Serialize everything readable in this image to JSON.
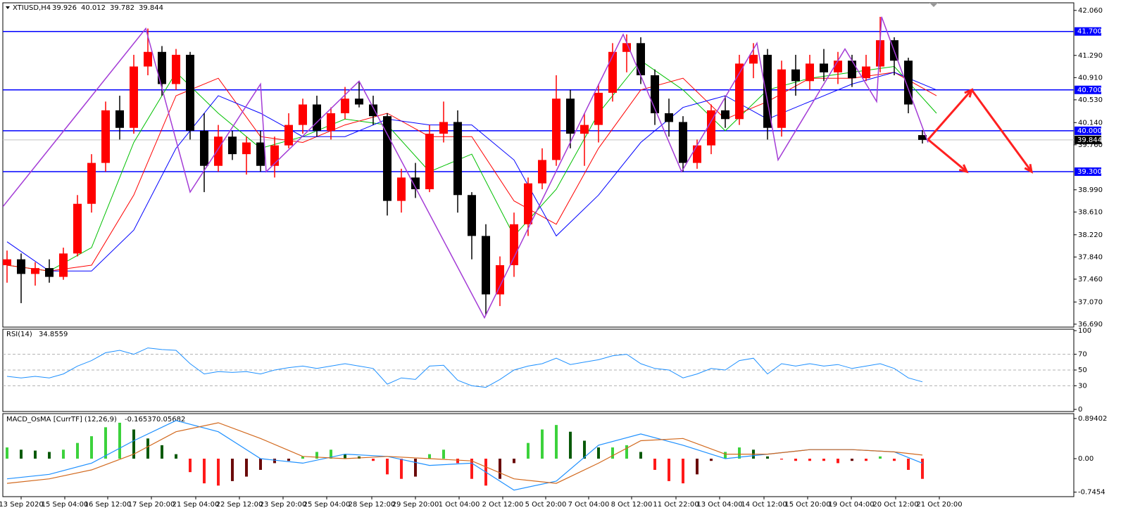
{
  "chart_data": [
    {
      "type": "candlestick",
      "title": "XTIUSD,H4",
      "xlim": [
        -0.3,
        75.75
      ],
      "ylim": [
        36.64,
        42.19
      ],
      "xticks": [
        {
          "value": 1,
          "label": "13 Sep 2020"
        },
        {
          "value": 4.1,
          "label": "15 Sep 04:00"
        },
        {
          "value": 7.15,
          "label": "16 Sep 12:00"
        },
        {
          "value": 10.25,
          "label": "17 Sep 20:00"
        },
        {
          "value": 13.4,
          "label": "21 Sep 04:00"
        },
        {
          "value": 16.5,
          "label": "22 Sep 12:00"
        },
        {
          "value": 19.6,
          "label": "23 Sep 20:00"
        },
        {
          "value": 22.7,
          "label": "25 Sep 04:00"
        },
        {
          "value": 25.9,
          "label": "28 Sep 12:00"
        },
        {
          "value": 29,
          "label": "29 Sep 20:00"
        },
        {
          "value": 32.1,
          "label": "1 Oct 04:00"
        },
        {
          "value": 35.2,
          "label": "2 Oct 12:00"
        },
        {
          "value": 38.25,
          "label": "5 Oct 20:00"
        },
        {
          "value": 41.3,
          "label": "7 Oct 04:00"
        },
        {
          "value": 44.35,
          "label": "8 Oct 12:00"
        },
        {
          "value": 47.5,
          "label": "11 Oct 22:00"
        },
        {
          "value": 50.6,
          "label": "13 Oct 04:00"
        },
        {
          "value": 53.75,
          "label": "14 Oct 12:00"
        },
        {
          "value": 56.85,
          "label": "15 Oct 20:00"
        },
        {
          "value": 59.95,
          "label": "19 Oct 04:00"
        },
        {
          "value": 63.1,
          "label": "20 Oct 12:00"
        },
        {
          "value": 66.2,
          "label": "21 Oct 20:00"
        }
      ],
      "yticks": [
        {
          "value": 42.06,
          "label": "42.060"
        },
        {
          "value": 41.29,
          "label": "41.290"
        },
        {
          "value": 40.91,
          "label": "40.910"
        },
        {
          "value": 40.53,
          "label": "40.530"
        },
        {
          "value": 40.14,
          "label": "40.140"
        },
        {
          "value": 39.76,
          "label": "39.760"
        },
        {
          "value": 38.99,
          "label": "38.990"
        },
        {
          "value": 38.61,
          "label": "38.610"
        },
        {
          "value": 38.22,
          "label": "38.220"
        },
        {
          "value": 37.84,
          "label": "37.840"
        },
        {
          "value": 37.46,
          "label": "37.460"
        },
        {
          "value": 37.07,
          "label": "37.070"
        },
        {
          "value": 36.69,
          "label": "36.690"
        }
      ],
      "up_color": "#ff0000",
      "down_color": "#000000",
      "ohlc": [
        [
          37.7,
          37.95,
          37.4,
          37.8
        ],
        [
          37.8,
          37.9,
          37.05,
          37.55
        ],
        [
          37.55,
          37.75,
          37.35,
          37.65
        ],
        [
          37.65,
          37.8,
          37.4,
          37.5
        ],
        [
          37.5,
          38.0,
          37.45,
          37.9
        ],
        [
          37.9,
          38.9,
          37.85,
          38.75
        ],
        [
          38.75,
          39.6,
          38.6,
          39.45
        ],
        [
          39.45,
          40.5,
          39.3,
          40.35
        ],
        [
          40.35,
          40.6,
          39.85,
          40.05
        ],
        [
          40.05,
          41.3,
          39.95,
          41.1
        ],
        [
          41.1,
          41.75,
          40.95,
          41.35
        ],
        [
          41.35,
          41.45,
          40.6,
          40.8
        ],
        [
          40.8,
          41.4,
          40.7,
          41.3
        ],
        [
          41.3,
          41.35,
          39.85,
          40.0
        ],
        [
          40.0,
          40.3,
          38.95,
          39.4
        ],
        [
          39.4,
          40.1,
          39.3,
          39.9
        ],
        [
          39.9,
          40.0,
          39.5,
          39.6
        ],
        [
          39.6,
          39.9,
          39.25,
          39.8
        ],
        [
          39.8,
          40.0,
          39.3,
          39.4
        ],
        [
          39.4,
          39.9,
          39.2,
          39.75
        ],
        [
          39.75,
          40.3,
          39.7,
          40.1
        ],
        [
          40.1,
          40.55,
          39.95,
          40.45
        ],
        [
          40.45,
          40.6,
          39.9,
          40.0
        ],
        [
          40.0,
          40.4,
          39.85,
          40.3
        ],
        [
          40.3,
          40.75,
          40.2,
          40.55
        ],
        [
          40.55,
          40.85,
          40.4,
          40.45
        ],
        [
          40.45,
          40.6,
          40.1,
          40.25
        ],
        [
          40.25,
          40.3,
          38.55,
          38.8
        ],
        [
          38.8,
          39.35,
          38.6,
          39.2
        ],
        [
          39.2,
          39.45,
          38.85,
          39.0
        ],
        [
          39.0,
          40.1,
          38.95,
          39.95
        ],
        [
          39.95,
          40.5,
          39.8,
          40.15
        ],
        [
          40.15,
          40.35,
          38.6,
          38.9
        ],
        [
          38.9,
          38.95,
          37.8,
          38.2
        ],
        [
          38.2,
          38.4,
          36.85,
          37.2
        ],
        [
          37.2,
          37.85,
          37.0,
          37.7
        ],
        [
          37.7,
          38.6,
          37.5,
          38.4
        ],
        [
          38.4,
          39.2,
          38.2,
          39.1
        ],
        [
          39.1,
          39.7,
          39.0,
          39.5
        ],
        [
          39.5,
          40.95,
          39.4,
          40.55
        ],
        [
          40.55,
          40.7,
          39.7,
          39.95
        ],
        [
          39.95,
          40.3,
          39.4,
          40.1
        ],
        [
          40.1,
          40.8,
          39.8,
          40.65
        ],
        [
          40.65,
          41.5,
          40.5,
          41.35
        ],
        [
          41.35,
          41.65,
          41.0,
          41.5
        ],
        [
          41.5,
          41.6,
          40.8,
          40.95
        ],
        [
          40.95,
          41.05,
          40.1,
          40.3
        ],
        [
          40.3,
          40.55,
          39.9,
          40.15
        ],
        [
          40.15,
          40.25,
          39.3,
          39.45
        ],
        [
          39.45,
          39.85,
          39.35,
          39.75
        ],
        [
          39.75,
          40.45,
          39.6,
          40.35
        ],
        [
          40.35,
          40.6,
          40.05,
          40.2
        ],
        [
          40.2,
          41.3,
          40.1,
          41.15
        ],
        [
          41.15,
          41.5,
          40.9,
          41.3
        ],
        [
          41.3,
          41.4,
          39.85,
          40.05
        ],
        [
          40.05,
          41.2,
          39.9,
          41.05
        ],
        [
          41.05,
          41.3,
          40.6,
          40.85
        ],
        [
          40.85,
          41.3,
          40.7,
          41.15
        ],
        [
          41.15,
          41.4,
          40.85,
          41.0
        ],
        [
          41.0,
          41.35,
          40.8,
          41.2
        ],
        [
          41.2,
          41.3,
          40.75,
          40.9
        ],
        [
          40.9,
          41.3,
          40.85,
          41.1
        ],
        [
          41.1,
          41.95,
          41.0,
          41.55
        ],
        [
          41.55,
          41.6,
          40.95,
          41.2
        ],
        [
          41.2,
          41.25,
          40.3,
          40.45
        ],
        [
          39.926,
          40.012,
          39.782,
          39.844
        ]
      ],
      "current_price": 39.844,
      "levels": [
        {
          "value": 41.7,
          "label": "41.700"
        },
        {
          "value": 40.7,
          "label": "40.700"
        },
        {
          "value": 40,
          "label": "40.000"
        },
        {
          "value": 39.3,
          "label": "39.300"
        }
      ],
      "level_color": "#0000ff",
      "moving_averages": {
        "x": [
          0,
          3,
          6,
          9,
          12,
          15,
          18,
          21,
          24,
          27,
          30,
          33,
          36,
          39,
          42,
          45,
          48,
          51,
          54,
          57,
          60,
          63,
          66
        ],
        "series": [
          {
            "color": "#00c000",
            "values": [
              37.7,
              37.6,
              38.0,
              39.8,
              41.0,
              40.3,
              39.7,
              39.9,
              40.2,
              40.1,
              39.3,
              39.6,
              38.2,
              39.0,
              40.3,
              41.2,
              40.7,
              40.0,
              40.7,
              40.9,
              41.0,
              41.1,
              40.3
            ]
          },
          {
            "color": "#ff0000",
            "values": [
              37.7,
              37.6,
              37.7,
              38.9,
              40.6,
              40.9,
              39.9,
              39.8,
              40.1,
              40.3,
              39.9,
              39.9,
              38.8,
              38.4,
              39.7,
              40.7,
              40.9,
              40.2,
              40.5,
              40.9,
              40.9,
              41.0,
              40.6
            ]
          },
          {
            "color": "#0000ff",
            "values": [
              38.1,
              37.6,
              37.6,
              38.3,
              39.7,
              40.6,
              40.3,
              39.9,
              39.9,
              40.2,
              40.1,
              40.1,
              39.5,
              38.2,
              38.9,
              39.8,
              40.4,
              40.6,
              40.2,
              40.5,
              40.8,
              41.0,
              40.7
            ]
          }
        ]
      },
      "zigzag": {
        "color": "#a43cd6",
        "x": [
          -0.3,
          9.85,
          13,
          18,
          18.4,
          25,
          33.9,
          43.75,
          47.9,
          53.25,
          54.75,
          59.5,
          61.75,
          62.1,
          65.4
        ],
        "y": [
          38.7,
          41.75,
          38.95,
          40.8,
          39.3,
          40.85,
          36.8,
          41.65,
          39.3,
          41.5,
          39.5,
          41.4,
          40.5,
          41.95,
          39.8
        ]
      },
      "arrows": {
        "color": "#ff2020",
        "items": [
          {
            "x": [
              65.4,
              68.5
            ],
            "y": [
              39.85,
              40.7
            ]
          },
          {
            "x": [
              68.5,
              72.75
            ],
            "y": [
              40.7,
              39.3
            ]
          },
          {
            "x": [
              65.4,
              68.15
            ],
            "y": [
              39.85,
              39.3
            ]
          }
        ]
      }
    },
    {
      "type": "line",
      "title": "RSI(14)",
      "last": 34.8559,
      "color": "#1e90ff",
      "ylim": [
        -2.7,
        101.8
      ],
      "yticks": [
        100,
        70,
        50,
        30,
        0
      ],
      "levels": [
        70,
        50,
        30
      ],
      "values": [
        42,
        40,
        42,
        40,
        45,
        55,
        62,
        72,
        75,
        70,
        78,
        76,
        75,
        58,
        45,
        48,
        47,
        48,
        45,
        50,
        53,
        55,
        52,
        55,
        58,
        55,
        52,
        32,
        40,
        38,
        55,
        56,
        37,
        30,
        28,
        38,
        50,
        55,
        58,
        65,
        57,
        60,
        63,
        68,
        70,
        58,
        52,
        50,
        40,
        45,
        52,
        50,
        62,
        65,
        45,
        58,
        55,
        58,
        55,
        57,
        52,
        55,
        58,
        52,
        40,
        35
      ]
    },
    {
      "type": "macd",
      "title": "MACD_OsMA [CurrTF] (12,26,9)",
      "readout": [
        -0.16537,
        0.05682
      ],
      "ylim": [
        -0.846,
        1.003
      ],
      "yticks": [
        0.89402,
        {
          "value": 0,
          "label": "0.00"
        },
        -0.7454
      ],
      "colors": {
        "up_pos": "#3cd23c",
        "down_pos": "#0a5a0a",
        "down_neg": "#ff1a1a",
        "up_neg": "#6b0a0a"
      },
      "histogram": [
        0.25,
        0.2,
        0.18,
        0.15,
        0.2,
        0.35,
        0.5,
        0.7,
        0.8,
        0.65,
        0.45,
        0.3,
        0.1,
        -0.3,
        -0.55,
        -0.6,
        -0.5,
        -0.4,
        -0.25,
        -0.1,
        -0.05,
        0.05,
        0.15,
        0.2,
        0.1,
        0.05,
        -0.05,
        -0.35,
        -0.45,
        -0.4,
        0.1,
        0.2,
        -0.1,
        -0.45,
        -0.6,
        -0.45,
        -0.1,
        0.35,
        0.65,
        0.75,
        0.6,
        0.4,
        0.25,
        0.25,
        0.3,
        0.15,
        -0.25,
        -0.5,
        -0.55,
        -0.35,
        -0.05,
        0.15,
        0.25,
        0.2,
        0.05,
        -0.02,
        -0.05,
        -0.05,
        -0.05,
        -0.1,
        -0.05,
        -0.05,
        0.05,
        -0.05,
        -0.25,
        -0.45
      ],
      "lines": {
        "x": [
          0,
          3,
          6,
          9,
          12,
          15,
          18,
          21,
          24,
          27,
          30,
          33,
          36,
          39,
          42,
          45,
          48,
          51,
          54,
          57,
          60,
          63,
          65
        ],
        "series": [
          {
            "color": "#1e90ff",
            "values": [
              -0.45,
              -0.35,
              -0.1,
              0.4,
              0.85,
              0.6,
              0.0,
              -0.1,
              0.1,
              0.05,
              -0.15,
              -0.1,
              -0.7,
              -0.5,
              0.3,
              0.55,
              0.3,
              0.0,
              0.1,
              0.2,
              0.2,
              0.15,
              -0.1
            ]
          },
          {
            "color": "#d2691e",
            "values": [
              -0.55,
              -0.45,
              -0.25,
              0.1,
              0.6,
              0.8,
              0.45,
              0.05,
              0.0,
              0.05,
              0.0,
              -0.05,
              -0.45,
              -0.55,
              -0.1,
              0.4,
              0.45,
              0.1,
              0.1,
              0.2,
              0.2,
              0.15,
              0.08
            ]
          }
        ]
      }
    }
  ]
}
